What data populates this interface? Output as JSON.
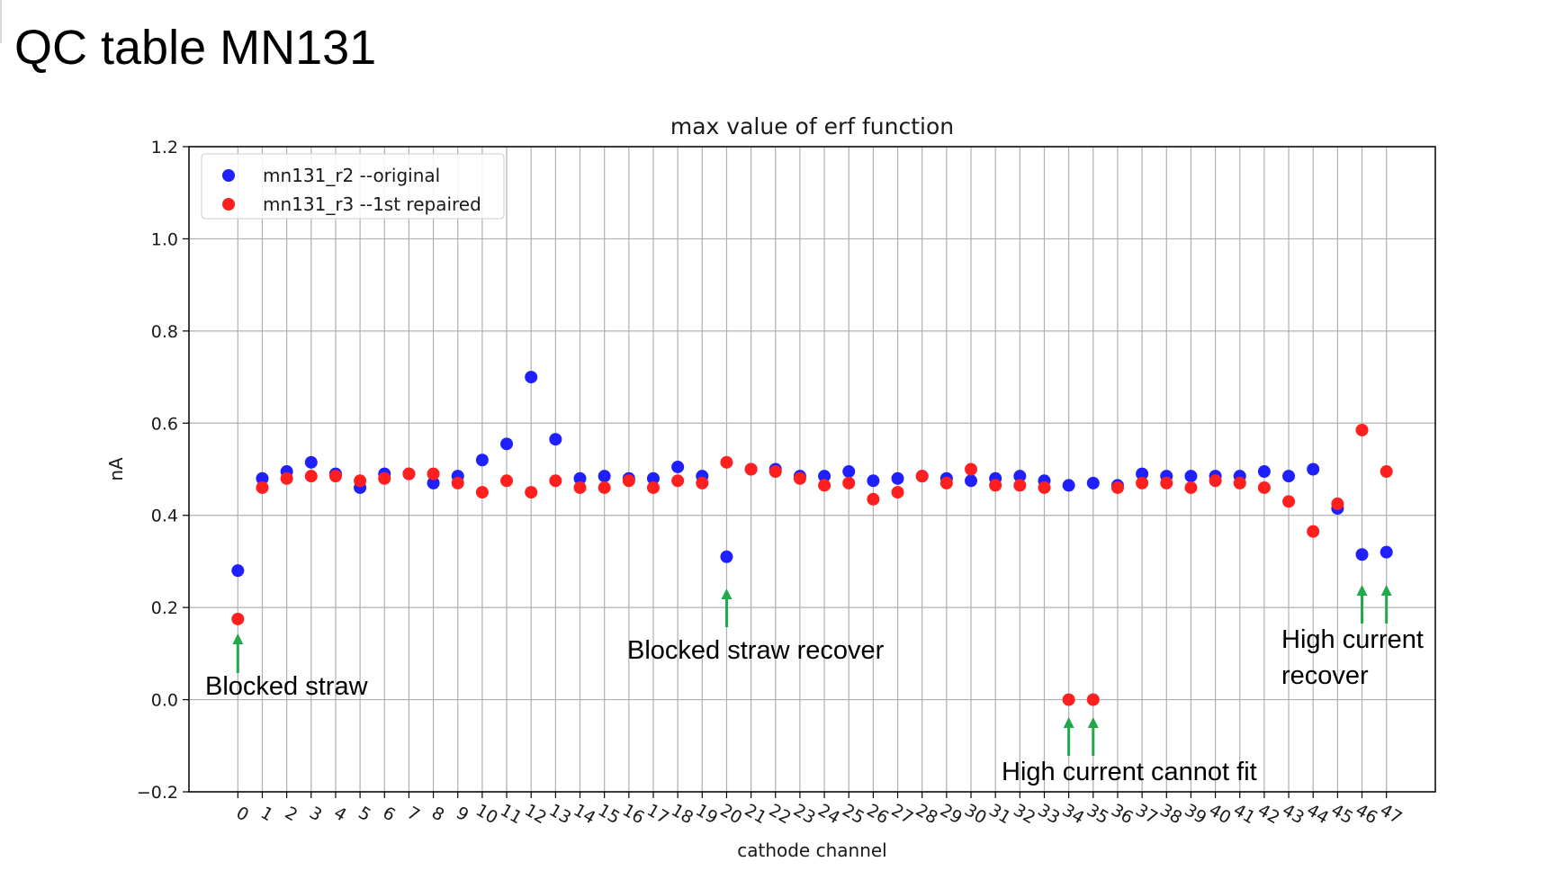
{
  "slide": {
    "title": "QC table MN131"
  },
  "chart_data": {
    "type": "scatter",
    "title": "max value of erf function",
    "xlabel": "cathode channel",
    "ylabel": "nA",
    "xlim": [
      -2,
      49
    ],
    "ylim": [
      -0.2,
      1.2
    ],
    "yticks": [
      -0.2,
      0.0,
      0.2,
      0.4,
      0.6,
      0.8,
      1.0,
      1.2
    ],
    "ytick_labels": [
      "−0.2",
      "0.0",
      "0.2",
      "0.4",
      "0.6",
      "0.8",
      "1.0",
      "1.2"
    ],
    "x": [
      0,
      1,
      2,
      3,
      4,
      5,
      6,
      7,
      8,
      9,
      10,
      11,
      12,
      13,
      14,
      15,
      16,
      17,
      18,
      19,
      20,
      21,
      22,
      23,
      24,
      25,
      26,
      27,
      28,
      29,
      30,
      31,
      32,
      33,
      34,
      35,
      36,
      37,
      38,
      39,
      40,
      41,
      42,
      43,
      44,
      45,
      46,
      47
    ],
    "xtick_labels": [
      "0",
      "1",
      "2",
      "3",
      "4",
      "5",
      "6",
      "7",
      "8",
      "9",
      "10",
      "11",
      "12",
      "13",
      "14",
      "15",
      "16",
      "17",
      "18",
      "19",
      "20",
      "21",
      "22",
      "23",
      "24",
      "25",
      "26",
      "27",
      "28",
      "29",
      "30",
      "31",
      "32",
      "33",
      "34",
      "35",
      "36",
      "37",
      "38",
      "39",
      "40",
      "41",
      "42",
      "43",
      "44",
      "45",
      "46",
      "47"
    ],
    "grid": true,
    "legend_position": "top-left",
    "series": [
      {
        "name": "mn131_r2 --original",
        "color": "#1f1fff",
        "values": [
          0.28,
          0.48,
          0.495,
          0.515,
          0.49,
          0.46,
          0.49,
          0.49,
          0.47,
          0.485,
          0.52,
          0.555,
          0.7,
          0.565,
          0.48,
          0.485,
          0.48,
          0.48,
          0.505,
          0.485,
          0.31,
          0.5,
          0.5,
          0.485,
          0.485,
          0.495,
          0.475,
          0.48,
          0.485,
          0.48,
          0.475,
          0.48,
          0.485,
          0.475,
          0.465,
          0.47,
          0.465,
          0.49,
          0.485,
          0.485,
          0.485,
          0.485,
          0.495,
          0.485,
          0.5,
          0.415,
          0.315,
          0.32
        ]
      },
      {
        "name": "mn131_r3 --1st repaired",
        "color": "#ff1f1f",
        "values": [
          0.175,
          0.46,
          0.48,
          0.485,
          0.485,
          0.475,
          0.48,
          0.49,
          0.49,
          0.47,
          0.45,
          0.475,
          0.45,
          0.475,
          0.46,
          0.46,
          0.475,
          0.46,
          0.475,
          0.47,
          0.515,
          0.5,
          0.495,
          0.48,
          0.465,
          0.47,
          0.435,
          0.45,
          0.485,
          0.47,
          0.5,
          0.465,
          0.465,
          0.46,
          0.0,
          0.0,
          0.46,
          0.47,
          0.47,
          0.46,
          0.475,
          0.47,
          0.46,
          0.43,
          0.365,
          0.425,
          0.585,
          0.495
        ]
      }
    ],
    "annotations": [
      {
        "text": "Blocked straw",
        "channel": 0
      },
      {
        "text": "Blocked straw recover",
        "channel": 20
      },
      {
        "text": "High current cannot fit",
        "channels": [
          34,
          35
        ]
      },
      {
        "text": "High current",
        "text_line2": "recover",
        "channels": [
          46,
          47
        ]
      }
    ],
    "arrow_color": "#22a84a"
  }
}
